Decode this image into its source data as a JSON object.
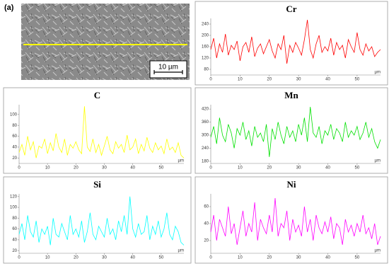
{
  "image": {
    "label": "(a)",
    "scale_bar": "10 µm"
  },
  "chart_data": [
    {
      "type": "line",
      "title": "Cr",
      "xlabel": "µm",
      "color": "#ff0000",
      "x": [
        0,
        1,
        2,
        3,
        4,
        5,
        6,
        7,
        8,
        9,
        10,
        11,
        12,
        13,
        14,
        15,
        16,
        17,
        18,
        19,
        20,
        21,
        22,
        23,
        24,
        25,
        26,
        27,
        28,
        29,
        30,
        31,
        32,
        33,
        34,
        35,
        36,
        37,
        38,
        39,
        40,
        41,
        42,
        43,
        44,
        45,
        46,
        47,
        48,
        49,
        50,
        51,
        52,
        53,
        54,
        55,
        56,
        57,
        58
      ],
      "values": [
        150,
        190,
        120,
        170,
        140,
        205,
        130,
        165,
        150,
        180,
        110,
        160,
        175,
        140,
        195,
        125,
        155,
        170,
        135,
        160,
        185,
        145,
        120,
        170,
        150,
        200,
        100,
        165,
        140,
        175,
        155,
        130,
        185,
        255,
        150,
        120,
        170,
        200,
        140,
        160,
        145,
        190,
        130,
        175,
        150,
        165,
        120,
        185,
        160,
        140,
        210,
        150,
        130,
        170,
        145,
        160,
        125,
        140,
        150
      ],
      "xlim": [
        0,
        58
      ],
      "xticks": [
        0,
        10,
        20,
        30,
        40,
        50
      ],
      "ylim": [
        60,
        260
      ],
      "yticks": [
        80,
        120,
        160,
        200,
        240
      ]
    },
    {
      "type": "line",
      "title": "C",
      "xlabel": "µm",
      "color": "#ffff00",
      "x": [
        0,
        1,
        2,
        3,
        4,
        5,
        6,
        7,
        8,
        9,
        10,
        11,
        12,
        13,
        14,
        15,
        16,
        17,
        18,
        19,
        20,
        21,
        22,
        23,
        24,
        25,
        26,
        27,
        28,
        29,
        30,
        31,
        32,
        33,
        34,
        35,
        36,
        37,
        38,
        39,
        40,
        41,
        42,
        43,
        44,
        45,
        46,
        47,
        48,
        49,
        50,
        51,
        52,
        53,
        54,
        55,
        56,
        57,
        58
      ],
      "values": [
        30,
        45,
        25,
        60,
        35,
        50,
        20,
        42,
        38,
        55,
        28,
        48,
        33,
        65,
        40,
        30,
        55,
        25,
        45,
        38,
        50,
        35,
        28,
        115,
        40,
        32,
        55,
        30,
        45,
        25,
        42,
        60,
        35,
        28,
        50,
        38,
        45,
        30,
        62,
        35,
        40,
        55,
        28,
        45,
        33,
        58,
        38,
        30,
        48,
        35,
        42,
        28,
        55,
        35,
        40,
        30,
        48,
        25,
        20
      ],
      "xlim": [
        0,
        58
      ],
      "xticks": [
        0,
        10,
        20,
        30,
        40,
        50
      ],
      "ylim": [
        10,
        118
      ],
      "yticks": [
        20,
        40,
        60,
        80,
        100
      ]
    },
    {
      "type": "line",
      "title": "Mn",
      "xlabel": "µm",
      "color": "#00e000",
      "x": [
        0,
        1,
        2,
        3,
        4,
        5,
        6,
        7,
        8,
        9,
        10,
        11,
        12,
        13,
        14,
        15,
        16,
        17,
        18,
        19,
        20,
        21,
        22,
        23,
        24,
        25,
        26,
        27,
        28,
        29,
        30,
        31,
        32,
        33,
        34,
        35,
        36,
        37,
        38,
        39,
        40,
        41,
        42,
        43,
        44,
        45,
        46,
        47,
        48,
        49,
        50,
        51,
        52,
        53,
        54,
        55,
        56,
        57,
        58
      ],
      "values": [
        290,
        340,
        260,
        380,
        300,
        270,
        350,
        310,
        240,
        330,
        300,
        360,
        280,
        320,
        250,
        340,
        290,
        310,
        270,
        350,
        200,
        330,
        280,
        360,
        300,
        260,
        340,
        290,
        320,
        270,
        350,
        300,
        380,
        270,
        430,
        310,
        290,
        340,
        260,
        320,
        300,
        350,
        280,
        330,
        310,
        270,
        360,
        290,
        320,
        300,
        340,
        280,
        310,
        360,
        290,
        330,
        270,
        240,
        280
      ],
      "xlim": [
        0,
        58
      ],
      "xticks": [
        0,
        10,
        20,
        30,
        40,
        50
      ],
      "ylim": [
        170,
        440
      ],
      "yticks": [
        180,
        240,
        300,
        360,
        420
      ]
    },
    {
      "type": "line",
      "title": "Si",
      "xlabel": "µm",
      "color": "#00ffff",
      "x": [
        0,
        1,
        2,
        3,
        4,
        5,
        6,
        7,
        8,
        9,
        10,
        11,
        12,
        13,
        14,
        15,
        16,
        17,
        18,
        19,
        20,
        21,
        22,
        23,
        24,
        25,
        26,
        27,
        28,
        29,
        30,
        31,
        32,
        33,
        34,
        35,
        36,
        37,
        38,
        39,
        40,
        41,
        42,
        43,
        44,
        45,
        46,
        47,
        48,
        49,
        50,
        51,
        52,
        53,
        54,
        55,
        56,
        57,
        58
      ],
      "values": [
        50,
        70,
        40,
        85,
        55,
        45,
        75,
        35,
        60,
        50,
        65,
        30,
        80,
        50,
        45,
        70,
        55,
        40,
        85,
        50,
        60,
        45,
        75,
        35,
        55,
        90,
        50,
        40,
        65,
        55,
        45,
        80,
        50,
        60,
        40,
        75,
        55,
        85,
        50,
        120,
        60,
        45,
        70,
        50,
        55,
        85,
        40,
        65,
        50,
        75,
        45,
        60,
        90,
        50,
        40,
        65,
        55,
        35,
        30
      ],
      "xlim": [
        0,
        58
      ],
      "xticks": [
        0,
        10,
        20,
        30,
        40,
        50
      ],
      "ylim": [
        15,
        125
      ],
      "yticks": [
        20,
        40,
        60,
        80,
        100,
        120
      ]
    },
    {
      "type": "line",
      "title": "Ni",
      "xlabel": "µm",
      "color": "#ff00ff",
      "x": [
        0,
        1,
        2,
        3,
        4,
        5,
        6,
        7,
        8,
        9,
        10,
        11,
        12,
        13,
        14,
        15,
        16,
        17,
        18,
        19,
        20,
        21,
        22,
        23,
        24,
        25,
        26,
        27,
        28,
        29,
        30,
        31,
        32,
        33,
        34,
        35,
        36,
        37,
        38,
        39,
        40,
        41,
        42,
        43,
        44,
        45,
        46,
        47,
        48,
        49,
        50,
        51,
        52,
        53,
        54,
        55,
        56,
        57,
        58
      ],
      "values": [
        30,
        50,
        20,
        45,
        35,
        25,
        60,
        28,
        40,
        15,
        35,
        55,
        25,
        40,
        30,
        65,
        20,
        45,
        35,
        28,
        50,
        30,
        70,
        25,
        40,
        35,
        55,
        20,
        45,
        30,
        38,
        25,
        60,
        30,
        45,
        20,
        50,
        35,
        28,
        42,
        30,
        48,
        22,
        40,
        35,
        15,
        45,
        30,
        38,
        25,
        40,
        30,
        50,
        28,
        35,
        22,
        40,
        15,
        25
      ],
      "xlim": [
        0,
        58
      ],
      "xticks": [
        0,
        10,
        20,
        30,
        40,
        50
      ],
      "ylim": [
        5,
        75
      ],
      "yticks": [
        20,
        40,
        60
      ]
    }
  ]
}
